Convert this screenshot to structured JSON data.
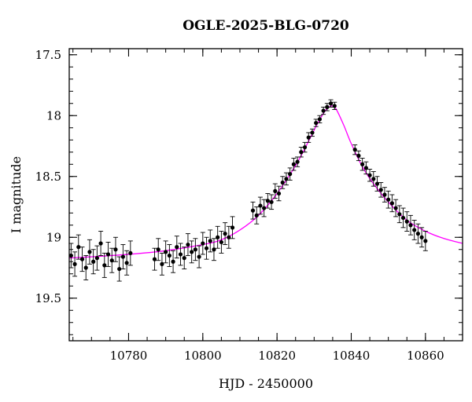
{
  "chart_data": {
    "type": "scatter",
    "title": "OGLE-2025-BLG-0720",
    "xlabel": "HJD - 2450000",
    "ylabel": "I magnitude",
    "xlim": [
      10764,
      10870
    ],
    "ylim": [
      19.85,
      17.45
    ],
    "y_inverted": true,
    "x_ticks": [
      10780,
      10800,
      10820,
      10840,
      10860
    ],
    "y_ticks": [
      17.5,
      18,
      18.5,
      19,
      19.5
    ],
    "x_tick_labels": [
      "10780",
      "10800",
      "10820",
      "10840",
      "10860"
    ],
    "y_tick_labels": [
      "17.5",
      "18",
      "18.5",
      "19",
      "19.5"
    ],
    "x_minor_step": 5,
    "y_minor_step": 0.1,
    "grid": false,
    "colors": {
      "data": "#000000",
      "model": "#ff00ff",
      "axes": "#000000"
    },
    "series": [
      {
        "kind": "points_with_errorbars",
        "marker": "filled-circle",
        "x": [
          10764.5,
          10765.5,
          10766.5,
          10767.5,
          10768.5,
          10769.5,
          10770.5,
          10771.5,
          10772.5,
          10773.5,
          10774.5,
          10775.5,
          10776.5,
          10777.5,
          10778.5,
          10779.5,
          10780.5,
          10787,
          10788,
          10789,
          10790,
          10791,
          10792,
          10793,
          10794,
          10795,
          10796,
          10797,
          10798,
          10799,
          10800,
          10801,
          10802,
          10803,
          10804,
          10805,
          10806,
          10807,
          10808,
          10813.5,
          10814.5,
          10815.5,
          10816.5,
          10817.5,
          10818.5,
          10819.5,
          10820.5,
          10821.5,
          10822.5,
          10823.5,
          10824.5,
          10825.5,
          10826.5,
          10827.5,
          10828.5,
          10829.5,
          10830.5,
          10831.5,
          10832.5,
          10833.5,
          10834.5,
          10835.5,
          10841,
          10842,
          10843,
          10844,
          10845,
          10846,
          10847,
          10848,
          10849,
          10850,
          10851,
          10852,
          10853,
          10854,
          10855,
          10856,
          10857,
          10858,
          10859,
          10860
        ],
        "y": [
          19.15,
          19.22,
          19.08,
          19.18,
          19.25,
          19.12,
          19.2,
          19.17,
          19.05,
          19.23,
          19.14,
          19.19,
          19.1,
          19.26,
          19.16,
          19.21,
          19.13,
          19.18,
          19.1,
          19.22,
          19.12,
          19.15,
          19.2,
          19.08,
          19.14,
          19.17,
          19.06,
          19.12,
          19.1,
          19.16,
          19.05,
          19.09,
          19.03,
          19.1,
          19.0,
          19.04,
          18.97,
          19.0,
          18.92,
          18.78,
          18.82,
          18.74,
          18.76,
          18.7,
          18.71,
          18.62,
          18.64,
          18.55,
          18.52,
          18.48,
          18.4,
          18.38,
          18.3,
          18.26,
          18.18,
          18.14,
          18.06,
          18.03,
          17.96,
          17.93,
          17.9,
          17.92,
          18.28,
          18.33,
          18.4,
          18.43,
          18.49,
          18.52,
          18.56,
          18.61,
          18.65,
          18.69,
          18.72,
          18.76,
          18.81,
          18.84,
          18.87,
          18.9,
          18.94,
          18.97,
          19.0,
          19.03
        ],
        "yerr": [
          0.1,
          0.1,
          0.1,
          0.1,
          0.1,
          0.1,
          0.1,
          0.1,
          0.1,
          0.1,
          0.1,
          0.1,
          0.1,
          0.1,
          0.1,
          0.1,
          0.1,
          0.09,
          0.09,
          0.09,
          0.09,
          0.09,
          0.09,
          0.09,
          0.09,
          0.09,
          0.09,
          0.09,
          0.09,
          0.09,
          0.09,
          0.09,
          0.09,
          0.09,
          0.09,
          0.09,
          0.09,
          0.09,
          0.09,
          0.07,
          0.07,
          0.07,
          0.07,
          0.06,
          0.06,
          0.06,
          0.06,
          0.05,
          0.05,
          0.05,
          0.05,
          0.04,
          0.04,
          0.04,
          0.04,
          0.03,
          0.03,
          0.03,
          0.03,
          0.03,
          0.03,
          0.03,
          0.04,
          0.04,
          0.05,
          0.05,
          0.05,
          0.06,
          0.06,
          0.06,
          0.06,
          0.07,
          0.07,
          0.07,
          0.07,
          0.08,
          0.08,
          0.08,
          0.08,
          0.08,
          0.08,
          0.08
        ]
      },
      {
        "kind": "model_curve",
        "x": [
          10764,
          10770,
          10780,
          10790,
          10800,
          10805,
          10810,
          10815,
          10820,
          10825,
          10828,
          10831,
          10833,
          10834,
          10835,
          10836,
          10838,
          10840,
          10843,
          10846,
          10850,
          10855,
          10860,
          10865,
          10870
        ],
        "y": [
          19.17,
          19.16,
          19.14,
          19.11,
          19.06,
          19.02,
          18.94,
          18.82,
          18.64,
          18.41,
          18.24,
          18.06,
          17.96,
          17.93,
          17.92,
          17.95,
          18.08,
          18.23,
          18.42,
          18.56,
          18.71,
          18.86,
          18.95,
          19.01,
          19.05
        ]
      }
    ]
  }
}
